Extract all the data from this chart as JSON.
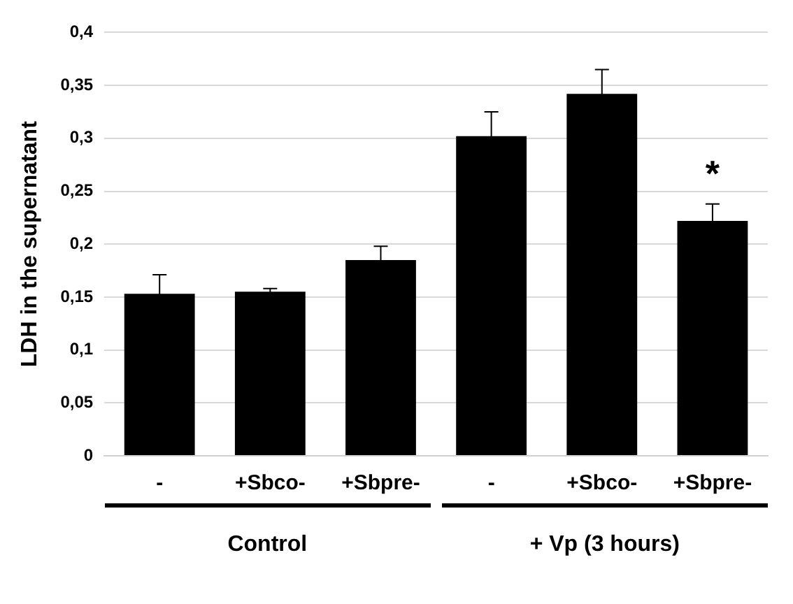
{
  "chart_data": {
    "type": "bar",
    "ylabel": "LDH in the supernatant",
    "categories": [
      "-",
      "+Sbco-",
      "+Sbpre-",
      "-",
      "+Sbco-",
      "+Sbpre-"
    ],
    "values": [
      0.153,
      0.155,
      0.185,
      0.302,
      0.342,
      0.222
    ],
    "errors": [
      0.018,
      0.003,
      0.013,
      0.023,
      0.023,
      0.016
    ],
    "color": "#000000",
    "ylim": [
      0,
      0.4
    ],
    "yticks": [
      {
        "value": 0,
        "label": "0"
      },
      {
        "value": 0.05,
        "label": "0,05"
      },
      {
        "value": 0.1,
        "label": "0,1"
      },
      {
        "value": 0.15,
        "label": "0,15"
      },
      {
        "value": 0.2,
        "label": "0,2"
      },
      {
        "value": 0.25,
        "label": "0,25"
      },
      {
        "value": 0.3,
        "label": "0,3"
      },
      {
        "value": 0.35,
        "label": "0,35"
      },
      {
        "value": 0.4,
        "label": "0,4"
      }
    ],
    "grid": "y",
    "legend": false,
    "annotations": [
      "*",
      "Control",
      "+ Vp (3 hours)"
    ]
  }
}
